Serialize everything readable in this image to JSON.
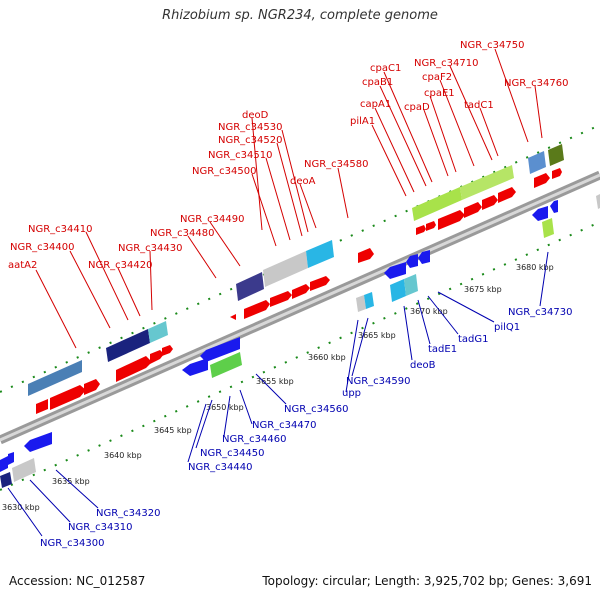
{
  "title": "Rhizobium sp. NGR234, complete genome",
  "footer": {
    "accession": "Accession: NC_012587",
    "topology": "Topology: circular; Length: 3,925,702 bp; Genes: 3,691"
  },
  "colors": {
    "forward_gene": "#ee0000",
    "reverse_gene": "#1a1aee",
    "backbone": "#9a9a9a",
    "tick": "#1a8a1a",
    "fwd_label": "#d40000",
    "rev_label": "#0000b0"
  },
  "ticks": [
    "3630 kbp",
    "3635 kbp",
    "3640 kbp",
    "3645 kbp",
    "3650 kbp",
    "3655 kbp",
    "3660 kbp",
    "3665 kbp",
    "3670 kbp",
    "3675 kbp",
    "3680 kbp"
  ],
  "forward_labels": [
    "aatA2",
    "NGR_c34400",
    "NGR_c34410",
    "NGR_c34420",
    "NGR_c34430",
    "NGR_c34480",
    "NGR_c34490",
    "NGR_c34500",
    "NGR_c34510",
    "NGR_c34520",
    "NGR_c34530",
    "deoD",
    "deoA",
    "NGR_c34580",
    "pilA1",
    "capA1",
    "cpaB1",
    "cpaC1",
    "cpaD",
    "cpaE1",
    "cpaF2",
    "NGR_c34710",
    "tadC1",
    "NGR_c34750",
    "NGR_c34760"
  ],
  "reverse_labels": [
    "NGR_c34300",
    "NGR_c34310",
    "NGR_c34320",
    "NGR_c34440",
    "NGR_c34450",
    "NGR_c34460",
    "NGR_c34470",
    "NGR_c34560",
    "upp",
    "NGR_c34590",
    "deoB",
    "tadE1",
    "tadG1",
    "pilQ1",
    "NGR_c34730"
  ]
}
